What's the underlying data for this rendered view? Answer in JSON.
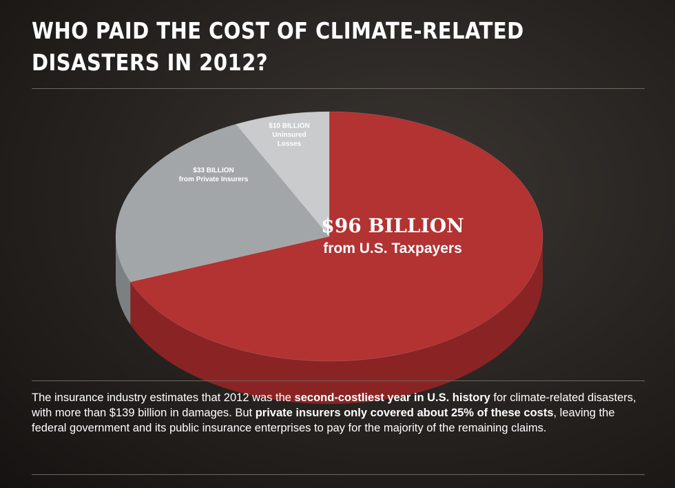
{
  "chart_data": {
    "type": "pie3d",
    "title": "WHO PAID THE COST OF CLIMATE-RELATED DISASTERS IN 2012?",
    "categories": [
      "from U.S. Taxpayers",
      "from Private Insurers",
      "Uninsured Losses"
    ],
    "values": [
      96,
      33,
      10
    ],
    "value_labels": [
      "$96 BILLION",
      "$33 BILLION",
      "$10 BILLION"
    ],
    "colors": [
      "#b33232",
      "#a3a6a8",
      "#c9cbcc"
    ],
    "side_colors": [
      "#8a2424",
      "#7d8082",
      "#9c9ea0"
    ]
  },
  "paragraph": [
    {
      "text": "The insurance industry estimates that 2012 was the ",
      "bold": false
    },
    {
      "text": "second-costliest year in U.S. history",
      "bold": true
    },
    {
      "text": " for climate-related disasters, with more than $139 billion in damages. But ",
      "bold": false
    },
    {
      "text": "private insurers only covered about 25% of these costs",
      "bold": true
    },
    {
      "text": ", leaving the federal government and its public insurance enterprises to pay for the majority of the remaining claims.",
      "bold": false
    }
  ]
}
